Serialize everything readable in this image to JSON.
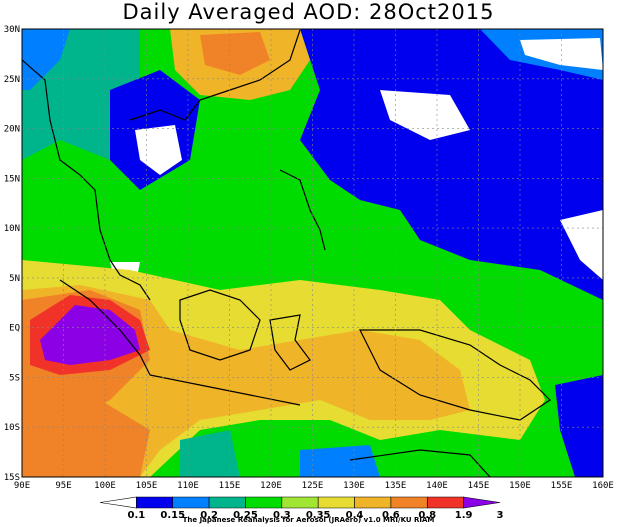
{
  "title": "Daily Averaged AOD: 28Oct2015",
  "map": {
    "lon_min": 90,
    "lon_max": 160,
    "lat_min": -15,
    "lat_max": 30,
    "lon_ticks": [
      "90E",
      "95E",
      "100E",
      "105E",
      "110E",
      "115E",
      "120E",
      "125E",
      "130E",
      "135E",
      "140E",
      "145E",
      "150E",
      "155E",
      "160E"
    ],
    "lat_ticks": [
      "30N",
      "25N",
      "20N",
      "15N",
      "10N",
      "5N",
      "EQ",
      "5S",
      "10S",
      "15S"
    ],
    "gridlines": "dotted"
  },
  "colorbar": {
    "levels": [
      "0.1",
      "0.15",
      "0.2",
      "0.25",
      "0.3",
      "0.35",
      "0.4",
      "0.6",
      "0.8",
      "1.9",
      "3"
    ],
    "colors": [
      "#ffffff",
      "#0000ee",
      "#0080ff",
      "#00b48c",
      "#00dc00",
      "#a0e632",
      "#e6dc32",
      "#f0b428",
      "#f08228",
      "#f03228",
      "#8c00e6"
    ]
  },
  "credit": "The Japanese Reanalysis for Aerosol (JRAero) v1.0 MRI/KU RIAM"
}
